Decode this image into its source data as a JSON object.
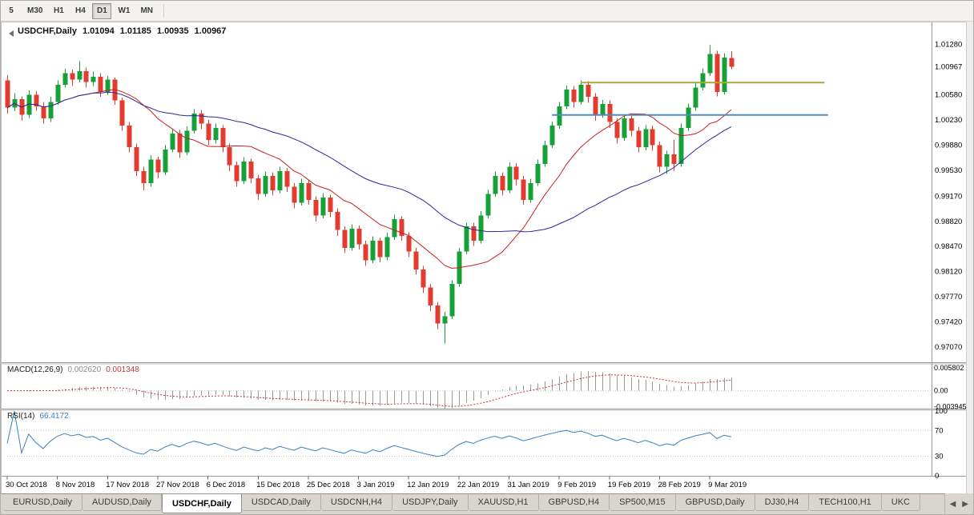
{
  "toolbar": {
    "timeframes": [
      {
        "label": "5",
        "active": false
      },
      {
        "label": "M30",
        "active": false
      },
      {
        "label": "H1",
        "active": false
      },
      {
        "label": "H4",
        "active": false
      },
      {
        "label": "D1",
        "active": true
      },
      {
        "label": "W1",
        "active": false
      },
      {
        "label": "MN",
        "active": false
      }
    ]
  },
  "chart_title": {
    "symbol": "USDCHF,Daily",
    "open": "1.01094",
    "high": "1.01185",
    "low": "1.00935",
    "close": "1.00967"
  },
  "colors": {
    "up": "#18a038",
    "down": "#e23b30",
    "ma_fast": "#c82020",
    "ma_slow": "#2828a0",
    "macd_hist": "#9a9a9a",
    "macd_signal": "#cc3333",
    "rsi": "#3a80c0"
  },
  "chart_data": {
    "type": "candlestick",
    "symbol": "USDCHF",
    "period": "Daily",
    "candles": [
      [
        1.0078,
        1.0085,
        1.0032,
        1.004
      ],
      [
        1.004,
        1.006,
        1.0035,
        1.0052
      ],
      [
        1.0052,
        1.0056,
        1.0022,
        1.003
      ],
      [
        1.003,
        1.0064,
        1.0026,
        1.0058
      ],
      [
        1.0058,
        1.0063,
        1.0036,
        1.0042
      ],
      [
        1.0042,
        1.0048,
        1.0018,
        1.0025
      ],
      [
        1.0025,
        1.0055,
        1.002,
        1.0048
      ],
      [
        1.0048,
        1.0078,
        1.0044,
        1.0072
      ],
      [
        1.0072,
        1.0094,
        1.0068,
        1.0088
      ],
      [
        1.0088,
        1.0093,
        1.007,
        1.0079
      ],
      [
        1.0079,
        1.0105,
        1.0075,
        1.0091
      ],
      [
        1.0091,
        1.0096,
        1.0068,
        1.0076
      ],
      [
        1.0076,
        1.009,
        1.007,
        1.0083
      ],
      [
        1.0083,
        1.0088,
        1.0055,
        1.0062
      ],
      [
        1.0062,
        1.0084,
        1.0058,
        1.0079
      ],
      [
        1.0079,
        1.0082,
        1.0044,
        1.005
      ],
      [
        1.005,
        1.0054,
        1.0008,
        1.0015
      ],
      [
        1.0015,
        1.002,
        0.9978,
        0.9985
      ],
      [
        0.9985,
        0.999,
        0.9945,
        0.9952
      ],
      [
        0.9952,
        0.9958,
        0.9925,
        0.9935
      ],
      [
        0.9935,
        0.9974,
        0.993,
        0.9968
      ],
      [
        0.9968,
        0.9972,
        0.9942,
        0.995
      ],
      [
        0.995,
        0.9988,
        0.9946,
        0.9982
      ],
      [
        0.9982,
        1.001,
        0.9978,
        1.0004
      ],
      [
        1.0004,
        1.0009,
        0.997,
        0.9978
      ],
      [
        0.9978,
        1.0014,
        0.9974,
        1.0008
      ],
      [
        1.0008,
        1.0038,
        1.0004,
        1.0032
      ],
      [
        1.0032,
        1.0037,
        1.001,
        1.0018
      ],
      [
        1.0018,
        1.0023,
        0.9988,
        0.9995
      ],
      [
        0.9995,
        1.0018,
        0.999,
        1.0012
      ],
      [
        1.0012,
        1.0016,
        0.9978,
        0.9985
      ],
      [
        0.9985,
        0.999,
        0.9952,
        0.996
      ],
      [
        0.996,
        0.9965,
        0.993,
        0.9938
      ],
      [
        0.9938,
        0.9971,
        0.9934,
        0.9965
      ],
      [
        0.9965,
        0.9969,
        0.9935,
        0.9942
      ],
      [
        0.9942,
        0.9947,
        0.9912,
        0.992
      ],
      [
        0.992,
        0.9951,
        0.9916,
        0.9945
      ],
      [
        0.9945,
        0.995,
        0.9918,
        0.9925
      ],
      [
        0.9925,
        0.9958,
        0.9921,
        0.9952
      ],
      [
        0.9952,
        0.9956,
        0.9923,
        0.993
      ],
      [
        0.993,
        0.9935,
        0.99,
        0.9908
      ],
      [
        0.9908,
        0.9941,
        0.9904,
        0.9935
      ],
      [
        0.9935,
        0.9939,
        0.9905,
        0.9912
      ],
      [
        0.9912,
        0.9917,
        0.9882,
        0.989
      ],
      [
        0.989,
        0.9921,
        0.9886,
        0.9915
      ],
      [
        0.9915,
        0.9919,
        0.9888,
        0.9895
      ],
      [
        0.9895,
        0.99,
        0.9862,
        0.987
      ],
      [
        0.987,
        0.9875,
        0.9838,
        0.9845
      ],
      [
        0.9845,
        0.9878,
        0.9841,
        0.9872
      ],
      [
        0.9872,
        0.9876,
        0.9843,
        0.985
      ],
      [
        0.985,
        0.9855,
        0.982,
        0.9828
      ],
      [
        0.9828,
        0.9861,
        0.9824,
        0.9855
      ],
      [
        0.9855,
        0.9859,
        0.9825,
        0.9832
      ],
      [
        0.9832,
        0.9866,
        0.9828,
        0.986
      ],
      [
        0.986,
        0.9891,
        0.9856,
        0.9885
      ],
      [
        0.9885,
        0.9889,
        0.9855,
        0.9862
      ],
      [
        0.9862,
        0.9867,
        0.9832,
        0.984
      ],
      [
        0.984,
        0.9845,
        0.9808,
        0.9815
      ],
      [
        0.9815,
        0.982,
        0.9782,
        0.979
      ],
      [
        0.979,
        0.9795,
        0.9757,
        0.9765
      ],
      [
        0.9765,
        0.977,
        0.9732,
        0.974
      ],
      [
        0.974,
        0.9756,
        0.9712,
        0.975
      ],
      [
        0.975,
        0.98,
        0.9746,
        0.9795
      ],
      [
        0.9795,
        0.9845,
        0.9791,
        0.984
      ],
      [
        0.984,
        0.988,
        0.9836,
        0.9875
      ],
      [
        0.9875,
        0.988,
        0.9848,
        0.9855
      ],
      [
        0.9855,
        0.9896,
        0.9851,
        0.989
      ],
      [
        0.989,
        0.9926,
        0.9886,
        0.992
      ],
      [
        0.992,
        0.9951,
        0.9916,
        0.9945
      ],
      [
        0.9945,
        0.995,
        0.9918,
        0.9925
      ],
      [
        0.9925,
        0.9964,
        0.9921,
        0.9958
      ],
      [
        0.9958,
        0.9963,
        0.9932,
        0.994
      ],
      [
        0.994,
        0.9945,
        0.9905,
        0.9912
      ],
      [
        0.9912,
        0.9941,
        0.9908,
        0.9935
      ],
      [
        0.9935,
        0.9968,
        0.9931,
        0.9962
      ],
      [
        0.9962,
        0.9994,
        0.9958,
        0.9988
      ],
      [
        0.9988,
        1.0021,
        0.9984,
        1.0015
      ],
      [
        1.0015,
        1.0048,
        1.0011,
        1.0042
      ],
      [
        1.0042,
        1.0071,
        1.0038,
        1.0065
      ],
      [
        1.0065,
        1.007,
        1.004,
        1.0048
      ],
      [
        1.0048,
        1.0078,
        1.0044,
        1.0072
      ],
      [
        1.0072,
        1.0077,
        1.0047,
        1.0055
      ],
      [
        1.0055,
        1.006,
        1.0022,
        1.003
      ],
      [
        1.003,
        1.0051,
        1.0026,
        1.0045
      ],
      [
        1.0045,
        1.005,
        1.0012,
        1.002
      ],
      [
        1.002,
        1.0025,
        0.999,
        0.9998
      ],
      [
        0.9998,
        1.0031,
        0.9994,
        1.0025
      ],
      [
        1.0025,
        1.003,
        1.0,
        1.0008
      ],
      [
        1.0008,
        1.0013,
        0.9978,
        0.9985
      ],
      [
        0.9985,
        1.0016,
        0.9981,
        1.001
      ],
      [
        1.001,
        1.0015,
        0.998,
        0.9988
      ],
      [
        0.9988,
        0.9993,
        0.995,
        0.9958
      ],
      [
        0.9958,
        0.998,
        0.9948,
        0.9975
      ],
      [
        0.9975,
        0.9995,
        0.9952,
        0.9962
      ],
      [
        0.9962,
        1.0018,
        0.9958,
        1.0012
      ],
      [
        1.0012,
        1.0046,
        1.0008,
        1.004
      ],
      [
        1.004,
        1.0074,
        1.0036,
        1.0068
      ],
      [
        1.0068,
        1.0095,
        1.0064,
        1.0088
      ],
      [
        1.0088,
        1.0127,
        1.0084,
        1.0115
      ],
      [
        1.0115,
        1.0119,
        1.0056,
        1.0062
      ],
      [
        1.0062,
        1.0116,
        1.0058,
        1.011
      ],
      [
        1.01094,
        1.01185,
        1.00935,
        1.00967
      ]
    ],
    "horizontal_lines": [
      {
        "price": 1.0075,
        "color": "#aaa83a",
        "from_index": 80,
        "to_index": 114
      },
      {
        "price": 1.003,
        "color": "#4e8cbe",
        "from_index": 76,
        "to_index": 114.5
      }
    ],
    "price_axis_labels": [
      "1.01280",
      "1.00967",
      "1.00580",
      "1.00230",
      "0.99880",
      "0.99530",
      "0.99170",
      "0.98820",
      "0.98470",
      "0.98120",
      "0.97770",
      "0.97420",
      "0.97070"
    ],
    "date_axis_labels": [
      {
        "label": "30 Oct 2018",
        "i": 0
      },
      {
        "label": "8 Nov 2018",
        "i": 7
      },
      {
        "label": "17 Nov 2018",
        "i": 14
      },
      {
        "label": "27 Nov 2018",
        "i": 21
      },
      {
        "label": "6 Dec 2018",
        "i": 28
      },
      {
        "label": "15 Dec 2018",
        "i": 35
      },
      {
        "label": "25 Dec 2018",
        "i": 42
      },
      {
        "label": "3 Jan 2019",
        "i": 49
      },
      {
        "label": "12 Jan 2019",
        "i": 56
      },
      {
        "label": "22 Jan 2019",
        "i": 63
      },
      {
        "label": "31 Jan 2019",
        "i": 70
      },
      {
        "label": "9 Feb 2019",
        "i": 77
      },
      {
        "label": "19 Feb 2019",
        "i": 84
      },
      {
        "label": "28 Feb 2019",
        "i": 91
      },
      {
        "label": "9 Mar 2019",
        "i": 98
      }
    ],
    "macd": {
      "label": "MACD(12,26,9)",
      "value_main": "0.002620",
      "value_signal": "0.001348",
      "axis_labels": [
        "0.005802",
        "0.00",
        "-0.003945"
      ]
    },
    "rsi": {
      "label": "RSI(14)",
      "value": "66.4172",
      "axis_labels": [
        "100",
        "70",
        "30",
        "0"
      ],
      "levels": [
        70,
        30
      ]
    }
  },
  "tabbar": {
    "tabs": [
      {
        "label": "EURUSD,Daily",
        "active": false
      },
      {
        "label": "AUDUSD,Daily",
        "active": false
      },
      {
        "label": "USDCHF,Daily",
        "active": true
      },
      {
        "label": "USDCAD,Daily",
        "active": false
      },
      {
        "label": "USDCNH,H4",
        "active": false
      },
      {
        "label": "USDJPY,Daily",
        "active": false
      },
      {
        "label": "XAUUSD,H1",
        "active": false
      },
      {
        "label": "GBPUSD,H4",
        "active": false
      },
      {
        "label": "SP500,M15",
        "active": false
      },
      {
        "label": "GBPUSD,Daily",
        "active": false
      },
      {
        "label": "DJ30,H4",
        "active": false
      },
      {
        "label": "TECH100,H1",
        "active": false
      },
      {
        "label": "UKC",
        "active": false
      }
    ],
    "left_arrow": "◀",
    "right_arrow": "▶"
  }
}
